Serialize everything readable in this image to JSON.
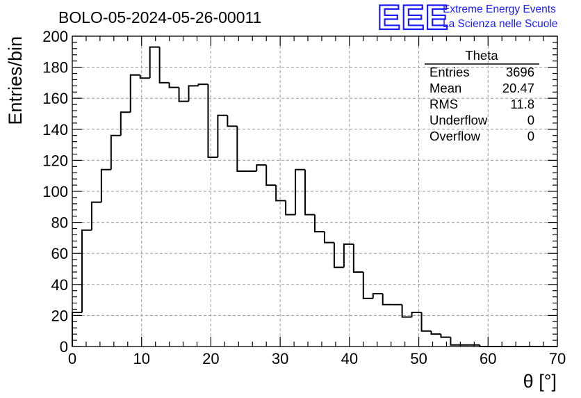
{
  "chart_data": {
    "type": "histogram",
    "title": "BOLO-05-2024-05-26-00011",
    "xlabel": "θ [°]",
    "ylabel": "Entries/bin",
    "xlim": [
      0,
      70
    ],
    "ylim": [
      0,
      200
    ],
    "x_ticks": [
      0,
      10,
      20,
      30,
      40,
      50,
      60,
      70
    ],
    "y_ticks": [
      0,
      20,
      40,
      60,
      80,
      100,
      120,
      140,
      160,
      180,
      200
    ],
    "grid": true,
    "bin_width": 1.4,
    "bin_start": 0,
    "values": [
      22,
      75,
      93,
      114,
      136,
      151,
      175,
      173,
      193,
      170,
      167,
      158,
      168,
      169,
      122,
      149,
      142,
      113,
      113,
      117,
      104,
      94,
      85,
      114,
      85,
      74,
      67,
      51,
      66,
      48,
      31,
      34,
      27,
      27,
      19,
      22,
      10,
      8,
      6,
      1,
      1,
      1,
      0,
      0,
      0,
      0,
      0,
      0,
      0,
      0
    ]
  },
  "stats_box": {
    "name": "Theta",
    "rows": [
      {
        "label": "Entries",
        "value": "3696"
      },
      {
        "label": "Mean",
        "value": "20.47"
      },
      {
        "label": "RMS",
        "value": "11.8"
      },
      {
        "label": "Underflow",
        "value": "0"
      },
      {
        "label": "Overflow",
        "value": "0"
      }
    ]
  },
  "logo": {
    "letters": "EEE",
    "line1": "Extreme Energy Events",
    "line2": "La Scienza nelle Scuole",
    "color": "#1a1aff"
  }
}
